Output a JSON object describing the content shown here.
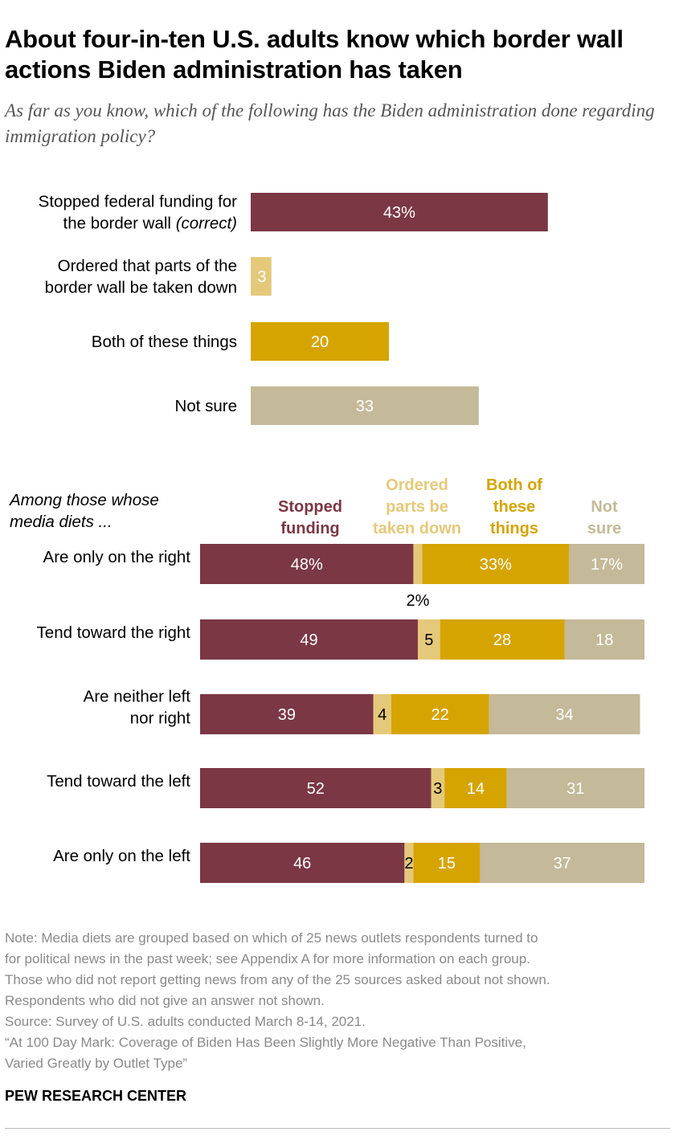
{
  "title": "About four-in-ten U.S. adults know which border wall actions Biden administration has taken",
  "subtitle": "As far as you know, which of the following has the Biden administration done regarding immigration policy?",
  "colors": {
    "stopped": "#7b3744",
    "ordered": "#e5c97a",
    "both": "#d6a400",
    "notsure": "#c4b998",
    "value_light": "#ffffff",
    "value_dark": "#000000"
  },
  "chart_data": [
    {
      "type": "bar",
      "orientation": "horizontal",
      "categories": [
        {
          "lines": [
            "Stopped federal funding for",
            "the border wall"
          ],
          "note": "(correct)"
        },
        {
          "lines": [
            "Ordered that parts of the",
            "border wall be taken down"
          ]
        },
        {
          "lines": [
            "Both of these things"
          ]
        },
        {
          "lines": [
            "Not sure"
          ]
        }
      ],
      "values": [
        43,
        3,
        20,
        33
      ],
      "labels": [
        "43%",
        "3",
        "20",
        "33"
      ],
      "xlim": [
        0,
        100
      ]
    },
    {
      "type": "bar",
      "orientation": "horizontal",
      "stacked": true,
      "row_header": [
        "Among those whose",
        "media diets ..."
      ],
      "legend": [
        {
          "lines": [
            "Stopped",
            "funding"
          ]
        },
        {
          "lines": [
            "Ordered",
            "parts be",
            "taken down"
          ]
        },
        {
          "lines": [
            "Both of",
            "these",
            "things"
          ]
        },
        {
          "lines": [
            "Not",
            "sure"
          ]
        }
      ],
      "categories": [
        {
          "lines": [
            "Are only on the right"
          ]
        },
        {
          "lines": [
            "Tend toward the right"
          ]
        },
        {
          "lines": [
            "Are neither left",
            "nor right"
          ]
        },
        {
          "lines": [
            "Tend toward the left"
          ]
        },
        {
          "lines": [
            "Are only on the left"
          ]
        }
      ],
      "series": [
        {
          "name": "Stopped funding",
          "values": [
            48,
            49,
            39,
            52,
            46
          ]
        },
        {
          "name": "Ordered parts be taken down",
          "values": [
            2,
            5,
            4,
            3,
            2
          ]
        },
        {
          "name": "Both of these things",
          "values": [
            33,
            28,
            22,
            14,
            15
          ]
        },
        {
          "name": "Not sure",
          "values": [
            17,
            18,
            34,
            31,
            37
          ]
        }
      ],
      "value_labels": [
        [
          "48%",
          "2%",
          "33%",
          "17%"
        ],
        [
          "49",
          "5",
          "28",
          "18"
        ],
        [
          "39",
          "4",
          "22",
          "34"
        ],
        [
          "52",
          "3",
          "14",
          "31"
        ],
        [
          "46",
          "2",
          "15",
          "37"
        ]
      ],
      "xlim": [
        0,
        100
      ]
    }
  ],
  "notes": [
    "Note: Media diets are grouped based on which of 25 news outlets respondents turned to",
    "for political news in the past week; see Appendix A for more information on each group.",
    "Those who did not report getting news from any of the 25 sources asked about not shown.",
    "Respondents who did not give an answer not shown.",
    "Source: Survey of U.S. adults conducted March 8-14, 2021.",
    "“At 100 Day Mark: Coverage of Biden Has Been Slightly More Negative Than Positive,",
    "Varied Greatly by Outlet Type”"
  ],
  "brand": "PEW RESEARCH CENTER"
}
